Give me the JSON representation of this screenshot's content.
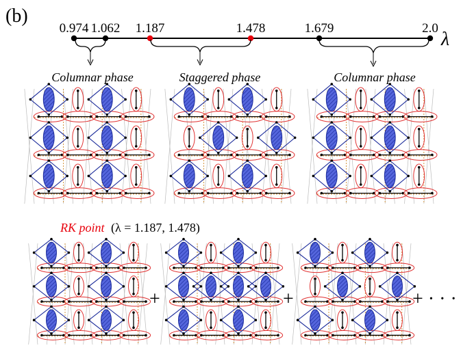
{
  "panel_label": "(b)",
  "parameter_symbol": "λ",
  "axis_ticks": [
    {
      "value": "0.974",
      "highlight": false
    },
    {
      "value": "1.062",
      "highlight": false
    },
    {
      "value": "1.187",
      "highlight": true
    },
    {
      "value": "1.478",
      "highlight": true
    },
    {
      "value": "1.679",
      "highlight": false
    },
    {
      "value": "2.0",
      "highlight": false
    }
  ],
  "phases": [
    {
      "label": "Columnar phase",
      "variant": "columnar"
    },
    {
      "label": "Staggered phase",
      "variant": "staggered"
    },
    {
      "label": "Columnar phase",
      "variant": "columnar"
    }
  ],
  "rk": {
    "title": "RK point",
    "condition": "(λ = 1.187, 1.478)",
    "operators": [
      "+",
      "+",
      "+ · · ·"
    ]
  },
  "colors": {
    "marked_point": "#e8000b",
    "rk_title": "#e8000b",
    "plaquette_fill": "#4a5bd4",
    "plaquette_edge": "#1a2a9a",
    "dimer_ring": "#e03030",
    "lattice_line": "#bbbbbb",
    "dashed_line": "#d08a2a"
  }
}
